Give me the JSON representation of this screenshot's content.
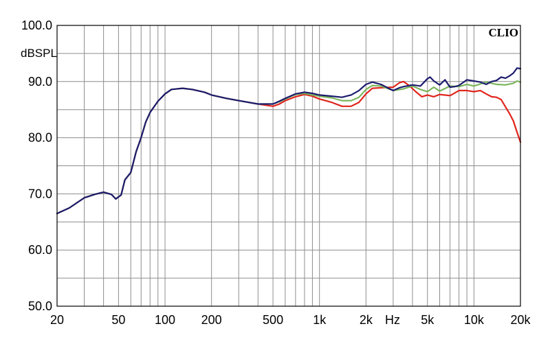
{
  "chart_data": {
    "type": "line",
    "brand": "CLIO",
    "ylabel": "dBSPL",
    "xlabel": "Hz",
    "x_scale": "log",
    "xlim": [
      20,
      20000
    ],
    "ylim": [
      50,
      100
    ],
    "grid": true,
    "y_ticks": [
      {
        "value": 100,
        "label": "100.0"
      },
      {
        "value": 90,
        "label": "90.0"
      },
      {
        "value": 80,
        "label": "80.0"
      },
      {
        "value": 70,
        "label": "70.0"
      },
      {
        "value": 60,
        "label": "60.0"
      },
      {
        "value": 50,
        "label": "50.0"
      }
    ],
    "x_ticks": [
      {
        "value": 20,
        "label": "20"
      },
      {
        "value": 50,
        "label": "50"
      },
      {
        "value": 100,
        "label": "100"
      },
      {
        "value": 200,
        "label": "200"
      },
      {
        "value": 500,
        "label": "500"
      },
      {
        "value": 1000,
        "label": "1k"
      },
      {
        "value": 2000,
        "label": "2k"
      },
      {
        "value": 5000,
        "label": "5k"
      },
      {
        "value": 10000,
        "label": "10k"
      },
      {
        "value": 20000,
        "label": "20k"
      }
    ],
    "series": [
      {
        "color": "#e0231b",
        "points": [
          [
            20,
            66.5
          ],
          [
            24,
            67.5
          ],
          [
            30,
            69.3
          ],
          [
            35,
            69.9
          ],
          [
            40,
            70.3
          ],
          [
            45,
            69.9
          ],
          [
            48,
            69.1
          ],
          [
            52,
            69.8
          ],
          [
            55,
            72.5
          ],
          [
            60,
            73.8
          ],
          [
            65,
            77.5
          ],
          [
            70,
            80
          ],
          [
            75,
            82.8
          ],
          [
            80,
            84.5
          ],
          [
            90,
            86.5
          ],
          [
            100,
            87.8
          ],
          [
            110,
            88.6
          ],
          [
            130,
            88.8
          ],
          [
            150,
            88.6
          ],
          [
            180,
            88.1
          ],
          [
            200,
            87.6
          ],
          [
            250,
            87
          ],
          [
            300,
            86.6
          ],
          [
            400,
            86
          ],
          [
            500,
            85.6
          ],
          [
            550,
            86
          ],
          [
            600,
            86.6
          ],
          [
            700,
            87.3
          ],
          [
            800,
            87.7
          ],
          [
            900,
            87.4
          ],
          [
            1000,
            86.9
          ],
          [
            1200,
            86.3
          ],
          [
            1400,
            85.6
          ],
          [
            1600,
            85.6
          ],
          [
            1800,
            86.3
          ],
          [
            2000,
            87.8
          ],
          [
            2200,
            88.8
          ],
          [
            2500,
            88.9
          ],
          [
            3000,
            89
          ],
          [
            3300,
            89.8
          ],
          [
            3500,
            90
          ],
          [
            3800,
            89.3
          ],
          [
            4200,
            88.2
          ],
          [
            4600,
            87.3
          ],
          [
            5000,
            87.6
          ],
          [
            5500,
            87.3
          ],
          [
            6000,
            87.7
          ],
          [
            7000,
            87.5
          ],
          [
            8000,
            88.4
          ],
          [
            9000,
            88.4
          ],
          [
            10000,
            88.2
          ],
          [
            11000,
            88.4
          ],
          [
            12000,
            87.8
          ],
          [
            13000,
            87.3
          ],
          [
            14000,
            87.2
          ],
          [
            15000,
            86.8
          ],
          [
            16000,
            85.5
          ],
          [
            17000,
            84.3
          ],
          [
            18000,
            83
          ],
          [
            19000,
            81
          ],
          [
            20000,
            79.2
          ]
        ]
      },
      {
        "color": "#7ab55c",
        "points": [
          [
            20,
            66.5
          ],
          [
            24,
            67.5
          ],
          [
            30,
            69.3
          ],
          [
            35,
            69.9
          ],
          [
            40,
            70.3
          ],
          [
            45,
            69.9
          ],
          [
            48,
            69.1
          ],
          [
            52,
            69.8
          ],
          [
            55,
            72.5
          ],
          [
            60,
            73.8
          ],
          [
            65,
            77.5
          ],
          [
            70,
            80
          ],
          [
            75,
            82.8
          ],
          [
            80,
            84.5
          ],
          [
            90,
            86.5
          ],
          [
            100,
            87.8
          ],
          [
            110,
            88.6
          ],
          [
            130,
            88.8
          ],
          [
            150,
            88.6
          ],
          [
            180,
            88.1
          ],
          [
            200,
            87.6
          ],
          [
            250,
            87
          ],
          [
            300,
            86.6
          ],
          [
            400,
            86
          ],
          [
            500,
            86
          ],
          [
            550,
            86.4
          ],
          [
            600,
            86.9
          ],
          [
            700,
            87.7
          ],
          [
            800,
            87.9
          ],
          [
            900,
            87.6
          ],
          [
            1000,
            87.4
          ],
          [
            1200,
            87.1
          ],
          [
            1400,
            86.6
          ],
          [
            1600,
            86.6
          ],
          [
            1800,
            87.2
          ],
          [
            2000,
            88.6
          ],
          [
            2200,
            89.3
          ],
          [
            2500,
            89.2
          ],
          [
            3000,
            88.4
          ],
          [
            3500,
            88.7
          ],
          [
            4000,
            89.2
          ],
          [
            4500,
            88.6
          ],
          [
            5000,
            88.2
          ],
          [
            5500,
            89
          ],
          [
            6000,
            88.3
          ],
          [
            7000,
            89.2
          ],
          [
            8000,
            89.1
          ],
          [
            9000,
            89.5
          ],
          [
            10000,
            89.2
          ],
          [
            12000,
            89.9
          ],
          [
            14000,
            89.5
          ],
          [
            16000,
            89.4
          ],
          [
            18000,
            89.7
          ],
          [
            19000,
            90.1
          ],
          [
            20000,
            89.9
          ]
        ]
      },
      {
        "color": "#1c1b6e",
        "points": [
          [
            20,
            66.5
          ],
          [
            24,
            67.5
          ],
          [
            30,
            69.3
          ],
          [
            35,
            69.9
          ],
          [
            40,
            70.3
          ],
          [
            45,
            69.9
          ],
          [
            48,
            69.1
          ],
          [
            52,
            69.8
          ],
          [
            55,
            72.5
          ],
          [
            60,
            73.8
          ],
          [
            65,
            77.5
          ],
          [
            70,
            80
          ],
          [
            75,
            82.8
          ],
          [
            80,
            84.5
          ],
          [
            90,
            86.5
          ],
          [
            100,
            87.8
          ],
          [
            110,
            88.6
          ],
          [
            130,
            88.8
          ],
          [
            150,
            88.6
          ],
          [
            180,
            88.1
          ],
          [
            200,
            87.6
          ],
          [
            250,
            87
          ],
          [
            300,
            86.6
          ],
          [
            400,
            86
          ],
          [
            500,
            86
          ],
          [
            550,
            86.5
          ],
          [
            600,
            87
          ],
          [
            700,
            87.8
          ],
          [
            800,
            88.1
          ],
          [
            900,
            87.9
          ],
          [
            1000,
            87.6
          ],
          [
            1200,
            87.4
          ],
          [
            1400,
            87.2
          ],
          [
            1600,
            87.6
          ],
          [
            1800,
            88.4
          ],
          [
            2000,
            89.5
          ],
          [
            2200,
            89.9
          ],
          [
            2500,
            89.5
          ],
          [
            2800,
            88.8
          ],
          [
            3000,
            88.4
          ],
          [
            3300,
            88.9
          ],
          [
            3500,
            89.1
          ],
          [
            4000,
            89.4
          ],
          [
            4500,
            89.2
          ],
          [
            5000,
            90.5
          ],
          [
            5200,
            90.8
          ],
          [
            5500,
            90.1
          ],
          [
            6000,
            89.4
          ],
          [
            6500,
            90.3
          ],
          [
            7000,
            89
          ],
          [
            7500,
            89.1
          ],
          [
            8000,
            89.3
          ],
          [
            9000,
            90.3
          ],
          [
            10000,
            90.1
          ],
          [
            11000,
            89.9
          ],
          [
            12000,
            89.5
          ],
          [
            13000,
            90
          ],
          [
            14000,
            90.2
          ],
          [
            15000,
            90.8
          ],
          [
            16000,
            90.6
          ],
          [
            17000,
            91
          ],
          [
            18000,
            91.5
          ],
          [
            19000,
            92.4
          ],
          [
            20000,
            92.3
          ]
        ]
      }
    ]
  }
}
